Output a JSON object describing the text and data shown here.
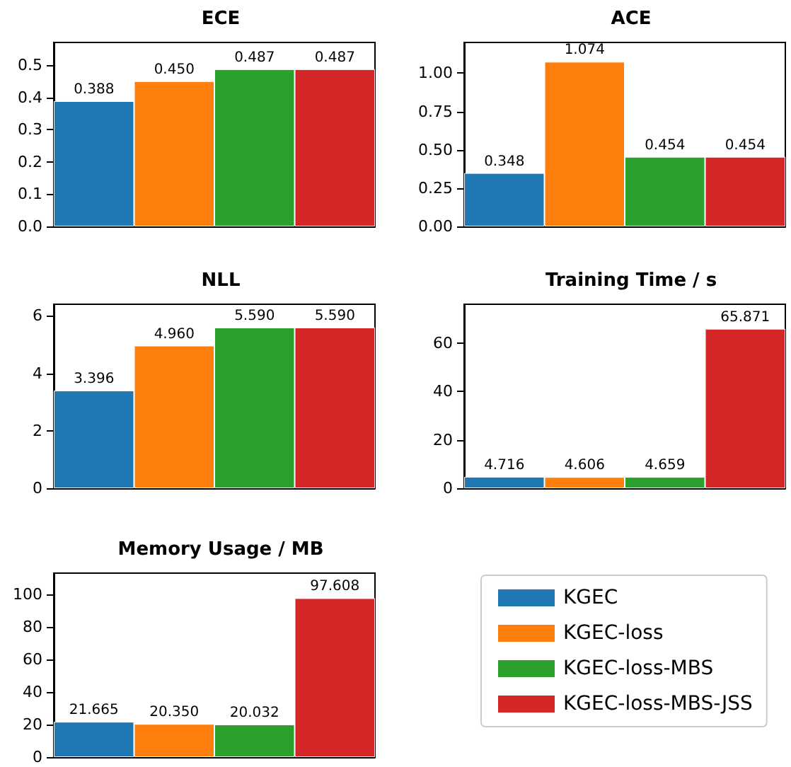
{
  "chart_data": [
    {
      "type": "bar",
      "title": "ECE",
      "categories": [
        null
      ],
      "grid": false,
      "ylim": [
        0,
        0.57
      ],
      "yticks": [
        {
          "value": 0,
          "label": "0.0"
        },
        {
          "value": 0.1,
          "label": "0.1"
        },
        {
          "value": 0.2,
          "label": "0.2"
        },
        {
          "value": 0.3,
          "label": "0.3"
        },
        {
          "value": 0.4,
          "label": "0.4"
        },
        {
          "value": 0.5,
          "label": "0.5"
        }
      ],
      "series": [
        {
          "color": "#1f77b4",
          "values": [
            0.388
          ],
          "value_labels": [
            "0.388"
          ]
        },
        {
          "color": "#ff7f0e",
          "values": [
            0.45
          ],
          "value_labels": [
            "0.450"
          ]
        },
        {
          "color": "#2ca02c",
          "values": [
            0.487
          ],
          "value_labels": [
            "0.487"
          ]
        },
        {
          "color": "#d62728",
          "values": [
            0.487
          ],
          "value_labels": [
            "0.487"
          ]
        }
      ]
    },
    {
      "type": "bar",
      "title": "ACE",
      "categories": [
        null
      ],
      "grid": false,
      "ylim": [
        0,
        1.2
      ],
      "yticks": [
        {
          "value": 0,
          "label": "0.00"
        },
        {
          "value": 0.25,
          "label": "0.25"
        },
        {
          "value": 0.5,
          "label": "0.50"
        },
        {
          "value": 0.75,
          "label": "0.75"
        },
        {
          "value": 1,
          "label": "1.00"
        }
      ],
      "series": [
        {
          "color": "#1f77b4",
          "values": [
            0.348
          ],
          "value_labels": [
            "0.348"
          ]
        },
        {
          "color": "#ff7f0e",
          "values": [
            1.074
          ],
          "value_labels": [
            "1.074"
          ]
        },
        {
          "color": "#2ca02c",
          "values": [
            0.454
          ],
          "value_labels": [
            "0.454"
          ]
        },
        {
          "color": "#d62728",
          "values": [
            0.454
          ],
          "value_labels": [
            "0.454"
          ]
        }
      ]
    },
    {
      "type": "bar",
      "title": "NLL",
      "categories": [
        null
      ],
      "grid": false,
      "ylim": [
        0,
        6.4
      ],
      "yticks": [
        0,
        2,
        4,
        6
      ],
      "series": [
        {
          "color": "#1f77b4",
          "values": [
            3.396
          ],
          "value_labels": [
            "3.396"
          ]
        },
        {
          "color": "#ff7f0e",
          "values": [
            4.96
          ],
          "value_labels": [
            "4.960"
          ]
        },
        {
          "color": "#2ca02c",
          "values": [
            5.59
          ],
          "value_labels": [
            "5.590"
          ]
        },
        {
          "color": "#d62728",
          "values": [
            5.59
          ],
          "value_labels": [
            "5.590"
          ]
        }
      ]
    },
    {
      "type": "bar",
      "title": "Training Time / s",
      "categories": [
        null
      ],
      "grid": false,
      "ylim": [
        0,
        76
      ],
      "yticks": [
        0,
        20,
        40,
        60
      ],
      "series": [
        {
          "color": "#1f77b4",
          "values": [
            4.716
          ],
          "value_labels": [
            "4.716"
          ]
        },
        {
          "color": "#ff7f0e",
          "values": [
            4.606
          ],
          "value_labels": [
            "4.606"
          ]
        },
        {
          "color": "#2ca02c",
          "values": [
            4.659
          ],
          "value_labels": [
            "4.659"
          ]
        },
        {
          "color": "#d62728",
          "values": [
            65.871
          ],
          "value_labels": [
            "65.871"
          ]
        }
      ]
    },
    {
      "type": "bar",
      "title": "Memory Usage / MB",
      "categories": [
        null
      ],
      "grid": false,
      "legend": "right",
      "ylim": [
        0,
        113
      ],
      "yticks": [
        0,
        20,
        40,
        60,
        80,
        100
      ],
      "series": [
        {
          "name": "KGEC",
          "color": "#1f77b4",
          "values": [
            21.665
          ],
          "value_labels": [
            "21.665"
          ]
        },
        {
          "name": "KGEC-loss",
          "color": "#ff7f0e",
          "values": [
            20.35
          ],
          "value_labels": [
            "20.350"
          ]
        },
        {
          "name": "KGEC-loss-MBS",
          "color": "#2ca02c",
          "values": [
            20.032
          ],
          "value_labels": [
            "20.032"
          ]
        },
        {
          "name": "KGEC-loss-MBS-JSS",
          "color": "#d62728",
          "values": [
            97.608
          ],
          "value_labels": [
            "97.608"
          ]
        }
      ]
    }
  ]
}
